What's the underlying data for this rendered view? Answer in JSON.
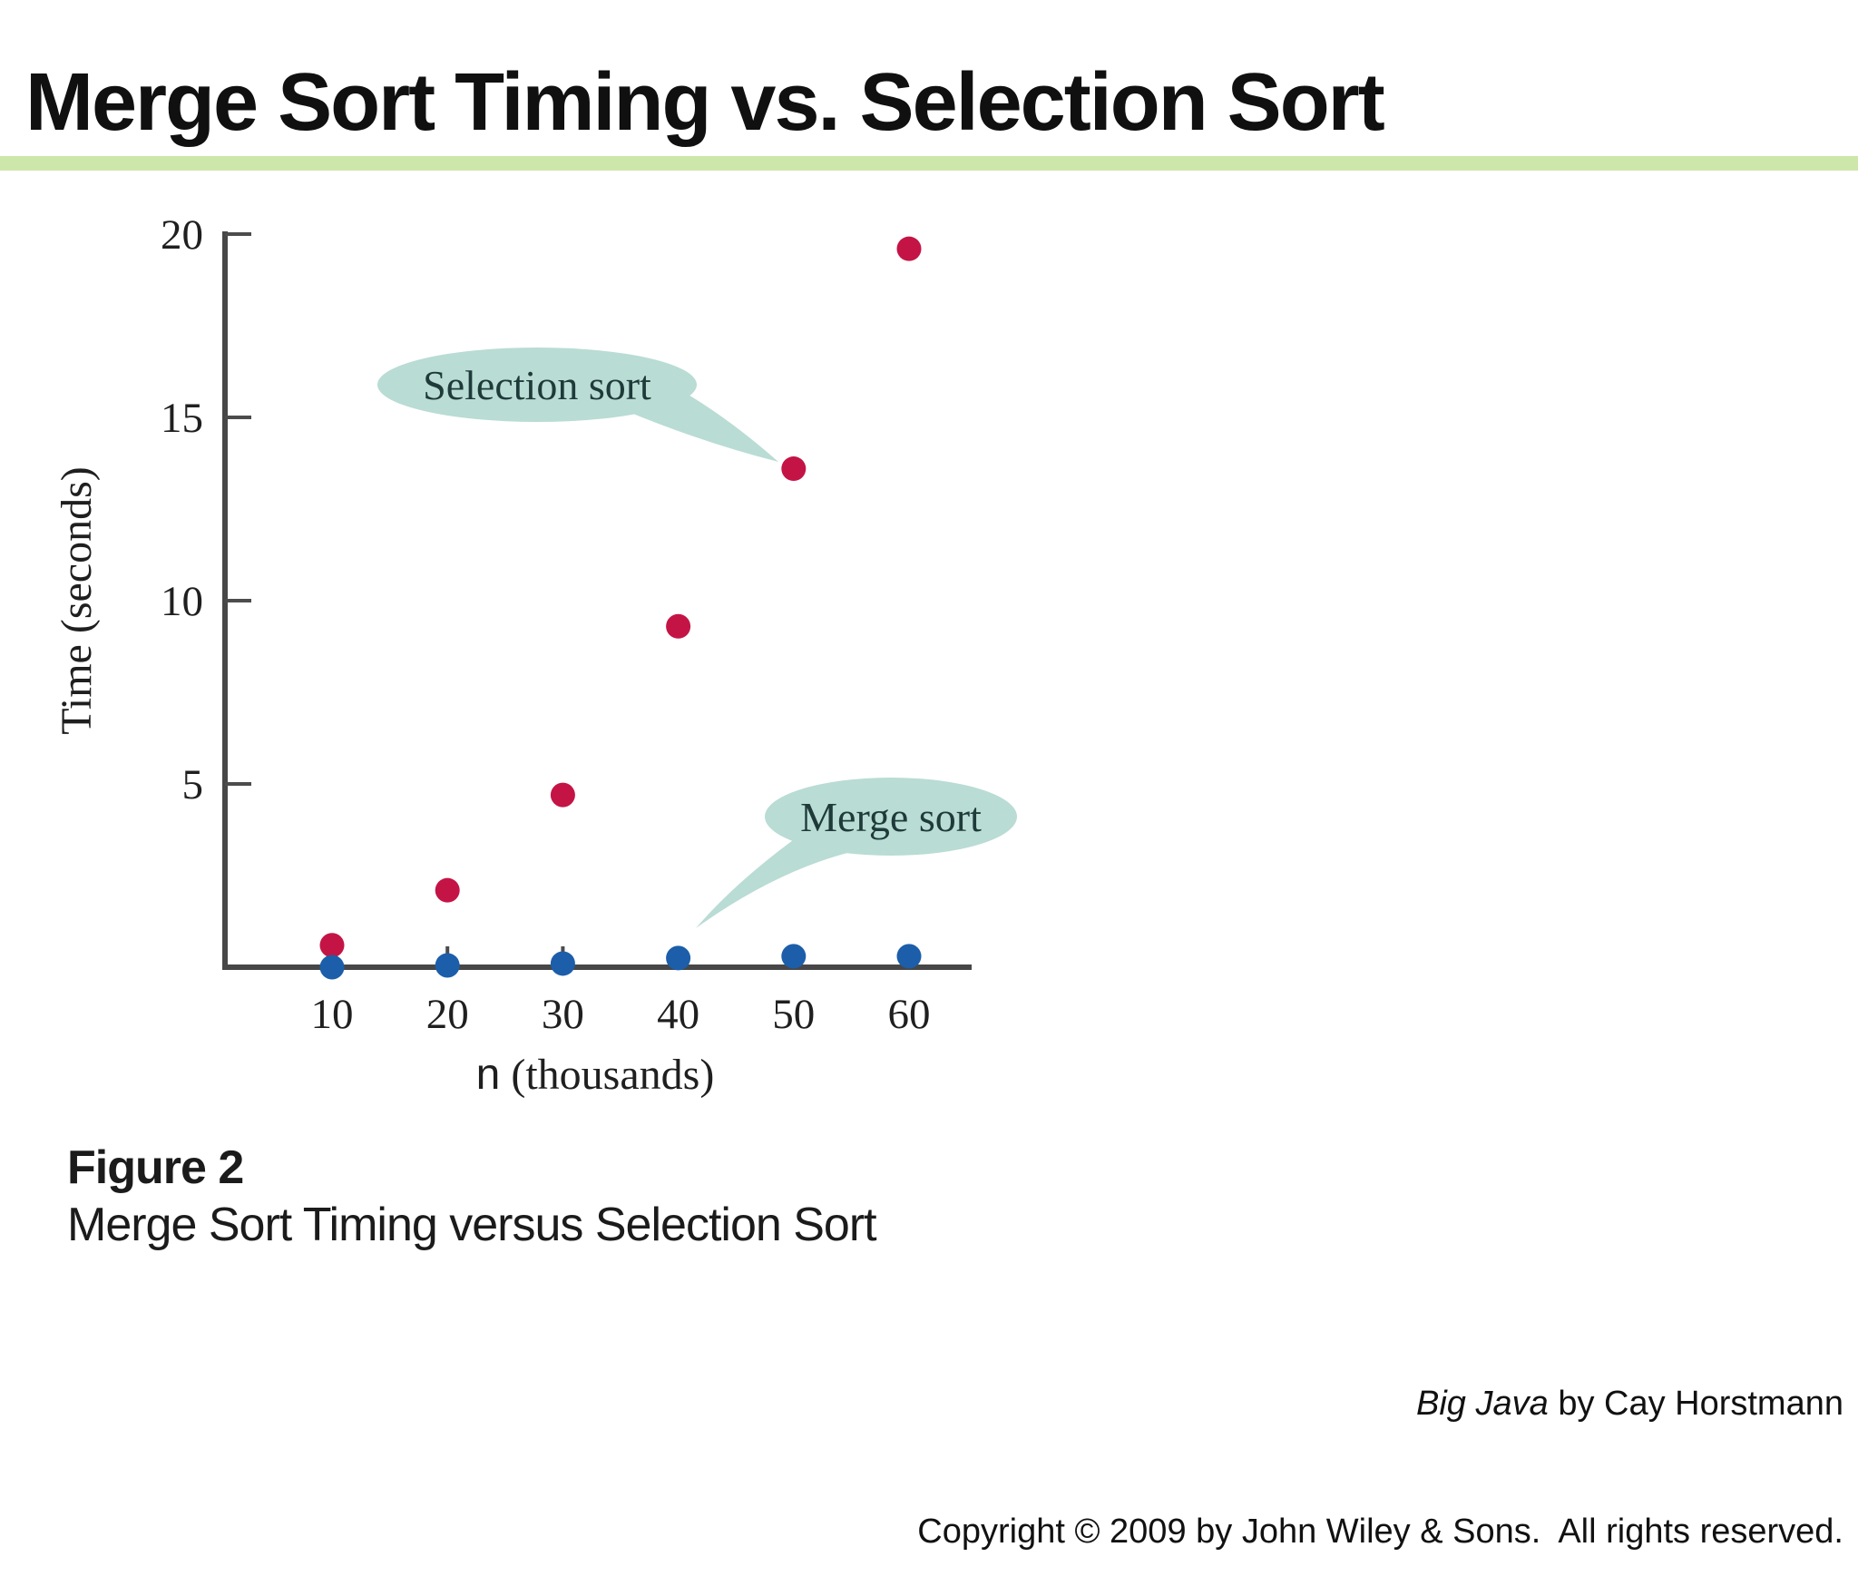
{
  "slide": {
    "title": "Merge Sort Timing vs. Selection Sort",
    "accent_bar_color": "#cde7ab"
  },
  "figure_caption": {
    "label": "Figure 2",
    "text": "Merge Sort Timing versus Selection Sort"
  },
  "footer": {
    "book_title": "Big Java",
    "book_byline": " by Cay Horstmann",
    "copyright": "Copyright © 2009 by John Wiley & Sons.  All rights reserved."
  },
  "chart_data": {
    "type": "scatter",
    "x": [
      10,
      20,
      30,
      40,
      50,
      60
    ],
    "x_tick_labels": [
      "10",
      "20",
      "30",
      "40",
      "50",
      "60"
    ],
    "xlabel": "n (thousands)",
    "xlabel_n": "n",
    "xlabel_units": " (thousands)",
    "ylabel": "Time (seconds)",
    "y_ticks": [
      5,
      10,
      15,
      20
    ],
    "ylim": [
      0,
      20
    ],
    "grid": false,
    "series": [
      {
        "name": "Selection sort",
        "color": "#c41445",
        "values": [
          0.6,
          2.1,
          4.7,
          9.3,
          13.6,
          19.6
        ]
      },
      {
        "name": "Merge sort",
        "color": "#1c5ea9",
        "values": [
          0.0,
          0.05,
          0.1,
          0.25,
          0.3,
          0.3
        ]
      }
    ],
    "annotations": [
      {
        "label": "Selection sort",
        "points_to": "x=50 data point"
      },
      {
        "label": "Merge sort",
        "points_to": "x=40 data point"
      }
    ],
    "callout_fill": "#b9dcd4",
    "callout_text_color": "#1e3b3a"
  }
}
